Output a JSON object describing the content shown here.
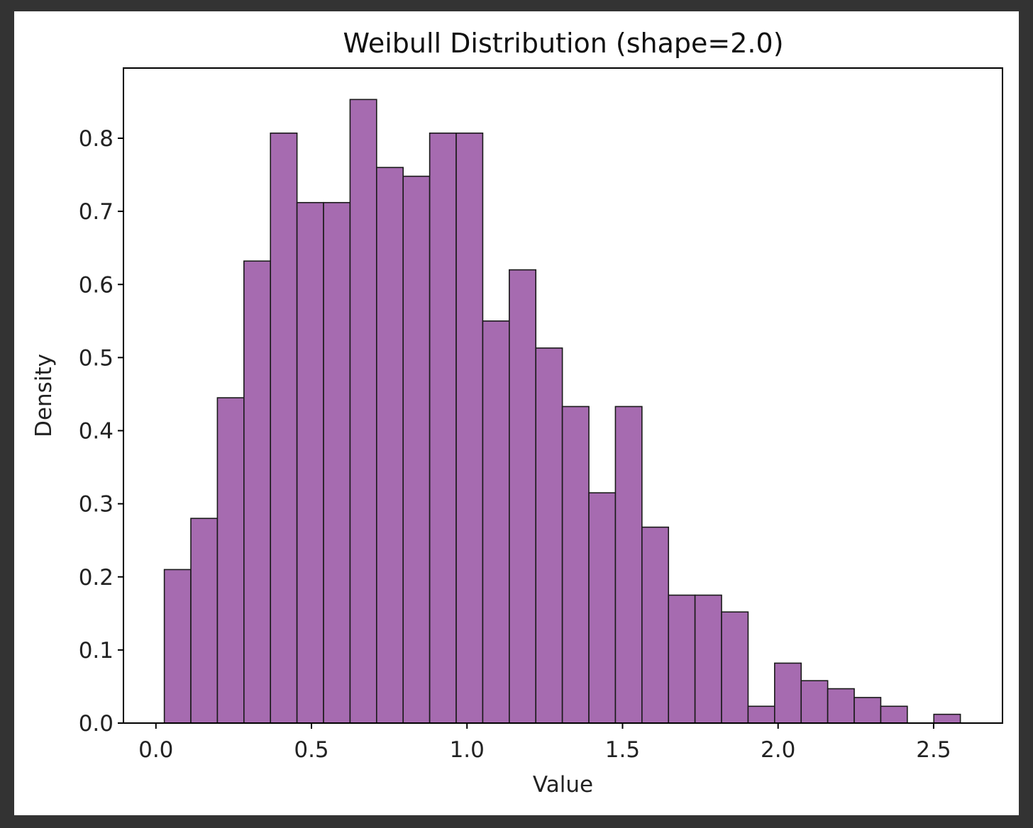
{
  "chart_data": {
    "type": "bar",
    "title": "Weibull Distribution (shape=2.0)",
    "xlabel": "Value",
    "ylabel": "Density",
    "bar_color": "#A66BB0",
    "edge_color": "#1a1a1a",
    "bin_start": 0.027,
    "bin_width": 0.0853,
    "values": [
      0.21,
      0.28,
      0.445,
      0.632,
      0.807,
      0.712,
      0.712,
      0.853,
      0.76,
      0.748,
      0.807,
      0.807,
      0.55,
      0.62,
      0.513,
      0.433,
      0.315,
      0.433,
      0.268,
      0.175,
      0.175,
      0.152,
      0.023,
      0.082,
      0.058,
      0.047,
      0.035,
      0.023,
      0.0,
      0.012
    ],
    "xlim": [
      -0.1044,
      2.7214
    ],
    "ylim": [
      0,
      0.896
    ],
    "xticks": [
      0.0,
      0.5,
      1.0,
      1.5,
      2.0,
      2.5
    ],
    "xtick_labels": [
      "0.0",
      "0.5",
      "1.0",
      "1.5",
      "2.0",
      "2.5"
    ],
    "yticks": [
      0.0,
      0.1,
      0.2,
      0.3,
      0.4,
      0.5,
      0.6,
      0.7,
      0.8
    ],
    "ytick_labels": [
      "0.0",
      "0.1",
      "0.2",
      "0.3",
      "0.4",
      "0.5",
      "0.6",
      "0.7",
      "0.8"
    ],
    "grid": false,
    "legend": "none"
  }
}
